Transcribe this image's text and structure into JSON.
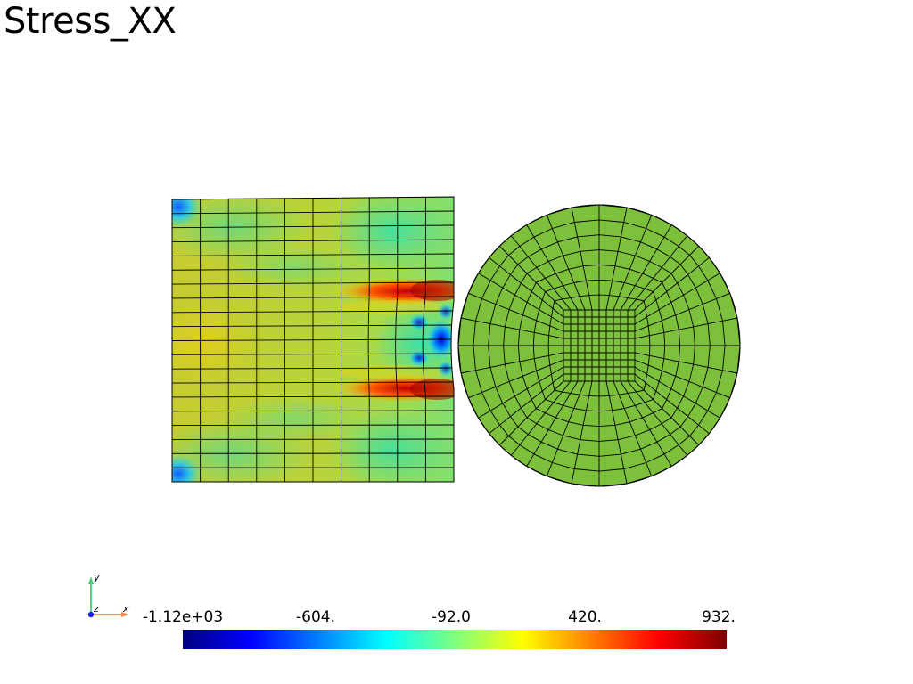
{
  "title": "Stress_XX",
  "colorbar": {
    "tick_labels": [
      "-1.12e+03",
      "-604.",
      "-92.0",
      "420.",
      "932."
    ],
    "range": [
      -1120,
      932
    ],
    "colormap": [
      "#00007f",
      "#0000ff",
      "#00ffff",
      "#7fff7f",
      "#ffff00",
      "#ff0000",
      "#7f0000"
    ]
  },
  "axes_triad": {
    "x_label": "x",
    "y_label": "y",
    "z_label": "z",
    "x_color": "#f08c50",
    "y_color": "#50c878",
    "z_color": "#1e1eff"
  },
  "block": {
    "columns": 10,
    "rows": 20,
    "base_color": "#c8d23c"
  },
  "disk": {
    "fill_color": "#7dc03c",
    "rings": 7,
    "spokes": 56,
    "core_cells": 10
  }
}
